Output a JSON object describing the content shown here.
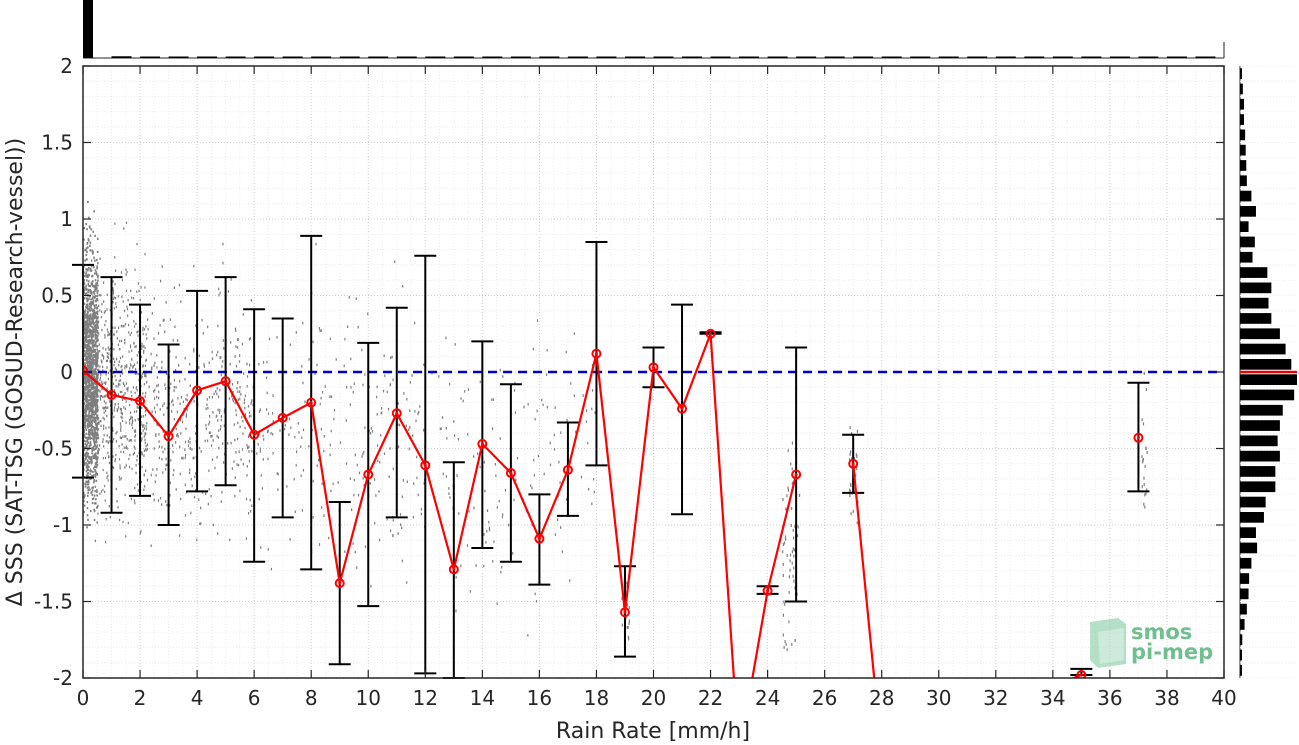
{
  "chart_data": {
    "type": "scatter",
    "xlabel": "Rain Rate [mm/h]",
    "ylabel": "Δ SSS (SAT-TSG (GOSUD-Research-vessel))",
    "xlim": [
      0,
      40
    ],
    "ylim": [
      -2,
      2
    ],
    "xticks": [
      0,
      2,
      4,
      6,
      8,
      10,
      12,
      14,
      16,
      18,
      20,
      22,
      24,
      26,
      28,
      30,
      32,
      34,
      36,
      38,
      40
    ],
    "yticks": [
      2,
      1.5,
      1,
      0.5,
      0,
      -0.5,
      -1,
      -1.5,
      -2
    ],
    "ytick_labels": [
      "2",
      "1.5",
      "1",
      "0.5",
      "0",
      "-0.5",
      "-1",
      "-1.5",
      "-2"
    ],
    "grid": true,
    "zero_line": {
      "y": 0,
      "color": "#0000cc",
      "style": "dashed"
    },
    "series": [
      {
        "type": "line",
        "color": "#ff0000",
        "x": [
          0,
          1,
          2,
          3,
          4,
          5,
          6,
          7,
          8,
          9,
          10,
          11,
          12,
          13,
          14,
          15,
          16,
          17,
          18,
          19,
          20,
          21,
          22,
          23,
          24,
          25,
          26,
          27,
          28,
          35,
          36,
          37
        ],
        "y": [
          0.01,
          -0.15,
          -0.19,
          -0.42,
          -0.12,
          -0.06,
          -0.41,
          -0.3,
          -0.2,
          -1.38,
          -0.67,
          -0.27,
          -0.61,
          -1.29,
          -0.47,
          -0.66,
          -1.09,
          -0.64,
          0.12,
          -1.57,
          0.03,
          -0.24,
          0.25,
          -2.5,
          -1.43,
          -0.67,
          null,
          -0.6,
          -2.5,
          -1.98,
          null,
          -0.43
        ]
      },
      {
        "type": "errorbar",
        "color": "#000000",
        "x": [
          0,
          1,
          2,
          3,
          4,
          5,
          6,
          7,
          8,
          9,
          10,
          11,
          12,
          13,
          14,
          15,
          16,
          17,
          18,
          19,
          20,
          21,
          22,
          24,
          25,
          27,
          35,
          37
        ],
        "low": [
          -0.69,
          -0.92,
          -0.81,
          -1.0,
          -0.78,
          -0.74,
          -1.24,
          -0.95,
          -1.29,
          -1.91,
          -1.53,
          -0.95,
          -1.97,
          -2.0,
          -1.15,
          -1.24,
          -1.39,
          -0.94,
          -0.61,
          -1.86,
          -0.1,
          -0.93,
          0.25,
          -1.45,
          -1.5,
          -0.79,
          -1.98,
          -0.78
        ],
        "high": [
          0.7,
          0.62,
          0.44,
          0.18,
          0.53,
          0.62,
          0.41,
          0.35,
          0.89,
          -0.85,
          0.19,
          0.42,
          0.76,
          -0.59,
          0.2,
          -0.08,
          -0.8,
          -0.33,
          0.85,
          -1.27,
          0.16,
          0.44,
          0.26,
          -1.4,
          0.16,
          -0.41,
          -1.94,
          -0.07
        ]
      }
    ],
    "top_histogram_counts": [
      100,
      3,
      2,
      1.5,
      1.2,
      1,
      1,
      0.8,
      0.7,
      0.6,
      0.5,
      0.5,
      0.4,
      0.4,
      0.3,
      0.3,
      0.3,
      0.3,
      0.2,
      0.2,
      0.2,
      0.2,
      0.2,
      0.2,
      0.2,
      0.2,
      0.2,
      0.2,
      0.2,
      0.2,
      0.2,
      0.2,
      0.2,
      0.2,
      0.2,
      0.2,
      0.2,
      0.2,
      0.2,
      0.2
    ],
    "side_histogram": {
      "y": [
        1.95,
        1.85,
        1.75,
        1.65,
        1.55,
        1.45,
        1.35,
        1.25,
        1.15,
        1.05,
        0.95,
        0.85,
        0.75,
        0.65,
        0.55,
        0.45,
        0.35,
        0.25,
        0.15,
        0.05,
        -0.05,
        -0.15,
        -0.25,
        -0.35,
        -0.45,
        -0.55,
        -0.65,
        -0.75,
        -0.85,
        -0.95,
        -1.05,
        -1.15,
        -1.25,
        -1.35,
        -1.45,
        -1.55,
        -1.65,
        -1.75,
        -1.85,
        -1.95
      ],
      "counts": [
        3,
        5,
        7,
        7,
        9,
        10,
        11,
        12,
        20,
        28,
        15,
        26,
        22,
        48,
        55,
        50,
        55,
        70,
        80,
        90,
        100,
        95,
        75,
        70,
        66,
        70,
        62,
        62,
        45,
        42,
        28,
        30,
        20,
        16,
        15,
        12,
        8,
        4,
        3,
        3
      ],
      "median": 0
    },
    "watermark": {
      "line1": "smos",
      "line2": "pi-mep"
    }
  }
}
